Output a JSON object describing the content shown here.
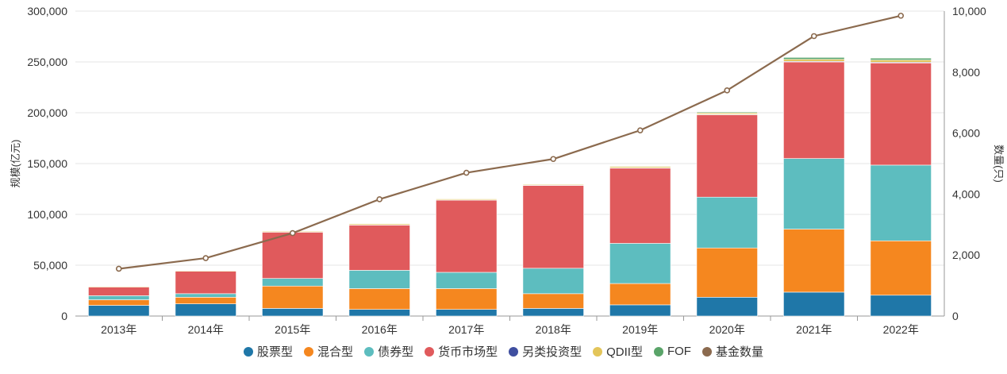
{
  "chart_data": {
    "type": "bar",
    "stacked": true,
    "categories": [
      "2013年",
      "2014年",
      "2015年",
      "2016年",
      "2017年",
      "2018年",
      "2019年",
      "2020年",
      "2021年",
      "2022年"
    ],
    "ylabel": "规模(亿元)",
    "y2label": "数量(只)",
    "ylim": [
      0,
      300000
    ],
    "y2lim": [
      0,
      10000
    ],
    "yticks": [
      "0",
      "50,000",
      "100,000",
      "150,000",
      "200,000",
      "250,000",
      "300,000"
    ],
    "y2ticks": [
      "0",
      "2,000",
      "4,000",
      "6,000",
      "8,000",
      "10,000"
    ],
    "grid": true,
    "legend_position": "bottom",
    "series": [
      {
        "name": "股票型",
        "color": "#1f77a8",
        "values": [
          10500,
          12000,
          7500,
          6500,
          6500,
          7500,
          11000,
          18500,
          23500,
          20500
        ]
      },
      {
        "name": "混合型",
        "color": "#f5871f",
        "values": [
          5500,
          6500,
          22000,
          20500,
          20500,
          14500,
          21000,
          48500,
          62000,
          53500
        ]
      },
      {
        "name": "债券型",
        "color": "#5dbdbf",
        "values": [
          4000,
          3500,
          7500,
          18000,
          16000,
          25000,
          39500,
          50000,
          69500,
          74500
        ]
      },
      {
        "name": "货币市场型",
        "color": "#e05a5c",
        "values": [
          8500,
          22000,
          45500,
          44500,
          71000,
          81500,
          74000,
          81000,
          95000,
          100500
        ]
      },
      {
        "name": "另类投资型",
        "color": "#3f4fa0",
        "values": [
          0,
          0,
          0,
          200,
          300,
          300,
          400,
          500,
          600,
          700
        ]
      },
      {
        "name": "QDII型",
        "color": "#e3c55a",
        "values": [
          700,
          700,
          800,
          1000,
          1000,
          800,
          1200,
          1300,
          2000,
          2200
        ]
      },
      {
        "name": "FOF",
        "color": "#5aa469",
        "values": [
          0,
          0,
          0,
          0,
          100,
          200,
          500,
          900,
          1800,
          1800
        ]
      }
    ],
    "line": {
      "name": "基金数量",
      "color": "#8b6a4e",
      "axis": "right",
      "values": [
        1550,
        1900,
        2720,
        3830,
        4700,
        5150,
        6090,
        7400,
        9180,
        9850
      ]
    }
  }
}
